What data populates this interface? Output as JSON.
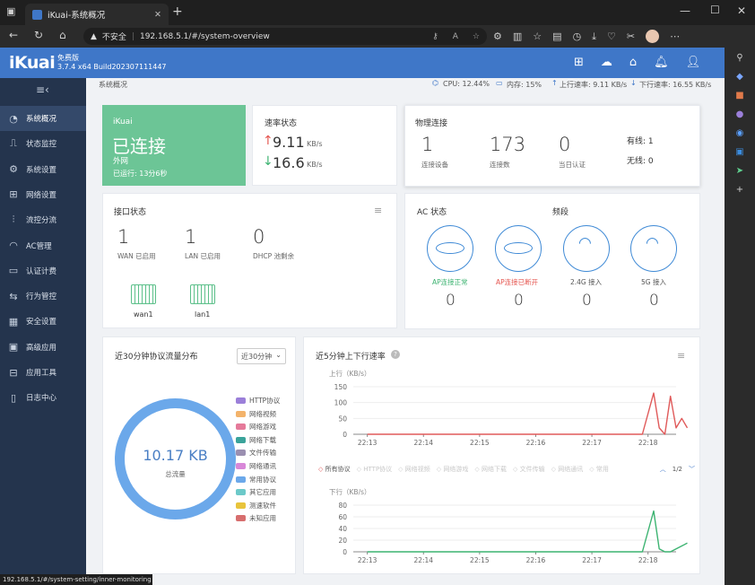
{
  "browser": {
    "tab_title": "iKuai-系统概况",
    "url_security": "不安全",
    "url": "192.168.5.1/#/system-overview",
    "status_url": "192.168.5.1/#/system-setting/inner-monitoring"
  },
  "header": {
    "logo": "iKuai",
    "edition": "免费版",
    "version": "3.7.4 x64 Build202307111447"
  },
  "sidebar": {
    "items": [
      {
        "label": "系统概况",
        "icon": "dashboard-icon"
      },
      {
        "label": "状态监控",
        "icon": "monitor-icon"
      },
      {
        "label": "系统设置",
        "icon": "gear-icon"
      },
      {
        "label": "网络设置",
        "icon": "network-icon"
      },
      {
        "label": "流控分流",
        "icon": "sliders-icon"
      },
      {
        "label": "AC管理",
        "icon": "wifi-icon"
      },
      {
        "label": "认证计费",
        "icon": "id-card-icon"
      },
      {
        "label": "行为管控",
        "icon": "arrows-icon"
      },
      {
        "label": "安全设置",
        "icon": "shield-icon"
      },
      {
        "label": "高级应用",
        "icon": "app-icon"
      },
      {
        "label": "应用工具",
        "icon": "tools-icon"
      },
      {
        "label": "日志中心",
        "icon": "log-icon"
      }
    ]
  },
  "topbar": {
    "breadcrumb": "系统概况",
    "cpu": "CPU: 12.44%",
    "mem": "内存: 15%",
    "up": "上行速率: 9.11 KB/s",
    "down": "下行速率: 16.55 KB/s"
  },
  "wan_card": {
    "brand": "iKuai",
    "status": "已连接",
    "type": "外网",
    "uptime": "已运行: 13分6秒"
  },
  "speed_card": {
    "title": "速率状态",
    "up_value": "9.11",
    "up_unit": "KB/s",
    "down_value": "16.6",
    "down_unit": "KB/s"
  },
  "physical_card": {
    "title": "物理连接",
    "devices_value": "1",
    "devices_label": "连接设备",
    "conns_value": "173",
    "conns_label": "连接数",
    "auth_value": "0",
    "auth_label": "当日认证",
    "wired": "有线: 1",
    "wireless": "无线: 0"
  },
  "iface_card": {
    "title": "接口状态",
    "wan_value": "1",
    "wan_label": "WAN 已启用",
    "lan_value": "1",
    "lan_label": "LAN 已启用",
    "dhcp_value": "0",
    "dhcp_label": "DHCP 池剩余",
    "port1": "wan1",
    "port2": "lan1"
  },
  "ac_card": {
    "title": "AC 状态",
    "band_title": "频段",
    "items": [
      {
        "label": "AP连接正常",
        "value": "0",
        "color": "#3cb371"
      },
      {
        "label": "AP连接已断开",
        "value": "0",
        "color": "#e5554f"
      },
      {
        "label": "2.4G 接入",
        "value": "0",
        "color": "#555555"
      },
      {
        "label": "5G 接入",
        "value": "0",
        "color": "#555555"
      }
    ]
  },
  "donut_card": {
    "title": "近30分钟协议流量分布",
    "select": "近30分钟",
    "total_value": "10.17 KB",
    "total_label": "总流量",
    "legend": [
      {
        "label": "HTTP协议",
        "color": "#9b7fd9"
      },
      {
        "label": "网络视频",
        "color": "#f3b36b"
      },
      {
        "label": "网络游戏",
        "color": "#e57a9a"
      },
      {
        "label": "网络下载",
        "color": "#3aa39a"
      },
      {
        "label": "文件传输",
        "color": "#9a8fb0"
      },
      {
        "label": "网络通讯",
        "color": "#d887d8"
      },
      {
        "label": "常用协议",
        "color": "#6ba8ea"
      },
      {
        "label": "其它应用",
        "color": "#6cc9c9"
      },
      {
        "label": "测速软件",
        "color": "#e8c43c"
      },
      {
        "label": "未知应用",
        "color": "#d76e6e"
      }
    ]
  },
  "rate_card": {
    "title": "近5分钟上下行速率",
    "up_axis": "上行（KB/s）",
    "down_axis": "下行（KB/s）",
    "filter_items": [
      "所有协议",
      "HTTP协议",
      "网络视频",
      "网络游戏",
      "网络下载",
      "文件传输",
      "网络通讯",
      "常用"
    ],
    "page": "1/2"
  },
  "chart_data": [
    {
      "type": "line",
      "title": "上行",
      "ylabel": "KB/s",
      "ylim": [
        0,
        150
      ],
      "yticks": [
        "150",
        "100",
        "50",
        "0"
      ],
      "xticks": [
        "22:13",
        "22:14",
        "22:15",
        "22:16",
        "22:17",
        "22:18"
      ],
      "series": [
        {
          "color": "#e05a5a",
          "x": [
            "22:13",
            "22:17.9",
            "22:18.1",
            "22:18.2",
            "22:18.3",
            "22:18.4",
            "22:18.5",
            "22:18.6",
            "22:18.7"
          ],
          "values": [
            0,
            0,
            130,
            20,
            0,
            120,
            20,
            50,
            20
          ]
        }
      ]
    },
    {
      "type": "line",
      "title": "下行",
      "ylabel": "KB/s",
      "ylim": [
        0,
        80
      ],
      "yticks": [
        "80",
        "60",
        "40",
        "20",
        "0"
      ],
      "xticks": [
        "22:13",
        "22:14",
        "22:15",
        "22:16",
        "22:17",
        "22:18"
      ],
      "series": [
        {
          "color": "#3cb371",
          "x": [
            "22:13",
            "22:17.9",
            "22:18.1",
            "22:18.2",
            "22:18.3",
            "22:18.4",
            "22:18.5",
            "22:18.6",
            "22:18.7"
          ],
          "values": [
            0,
            0,
            70,
            5,
            0,
            0,
            5,
            10,
            15
          ]
        }
      ]
    }
  ]
}
